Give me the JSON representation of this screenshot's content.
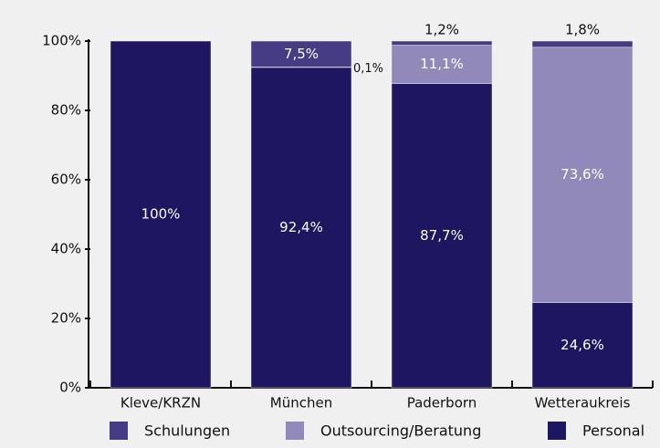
{
  "chart_data": {
    "type": "stacked_bar",
    "categories": [
      "Kleve/KRZN",
      "München",
      "Paderborn",
      "Wetteraukreis"
    ],
    "series": [
      {
        "name": "Schulungen",
        "color": "#463c85",
        "values": [
          0,
          7.5,
          1.2,
          1.8
        ],
        "value_labels": [
          null,
          "7,5%",
          "1,2%",
          "1,8%"
        ]
      },
      {
        "name": "Outsourcing/Beratung",
        "color": "#9189b9",
        "values": [
          0,
          0.1,
          11.1,
          73.6
        ],
        "value_labels": [
          null,
          "0,1%",
          "11,1%",
          "73,6%"
        ]
      },
      {
        "name": "Personal",
        "color": "#1e1660",
        "values": [
          100,
          92.4,
          87.7,
          24.6
        ],
        "value_labels": [
          "100%",
          "92,4%",
          "87,7%",
          "24,6%"
        ]
      }
    ],
    "ylim": [
      0,
      100
    ],
    "yticks": [
      {
        "value": 0,
        "label": "0%"
      },
      {
        "value": 20,
        "label": "20%"
      },
      {
        "value": 40,
        "label": "40%"
      },
      {
        "value": 60,
        "label": "60%"
      },
      {
        "value": 80,
        "label": "80%"
      },
      {
        "value": 100,
        "label": "100%"
      }
    ]
  }
}
